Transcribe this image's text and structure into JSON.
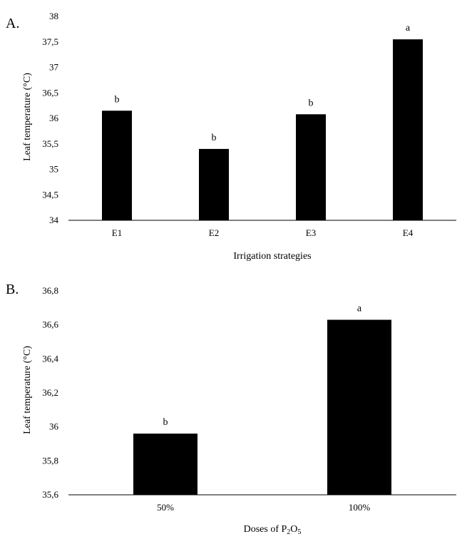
{
  "chart_data": [
    {
      "panel": "A.",
      "type": "bar",
      "categories": [
        "E1",
        "E2",
        "E3",
        "E4"
      ],
      "values": [
        36.15,
        35.4,
        36.08,
        37.55
      ],
      "bar_labels": [
        "b",
        "b",
        "b",
        "a"
      ],
      "title": "",
      "xlabel": "Irrigation strategies",
      "ylabel": "Leaf temperature (°C)",
      "ylim": [
        34,
        38
      ],
      "yticks": [
        "34",
        "34,5",
        "35",
        "35,5",
        "36",
        "36,5",
        "37",
        "37,5",
        "38"
      ],
      "grid": false,
      "bar_color": "#000000"
    },
    {
      "panel": "B.",
      "type": "bar",
      "categories": [
        "50%",
        "100%"
      ],
      "values": [
        35.96,
        36.63
      ],
      "bar_labels": [
        "b",
        "a"
      ],
      "title": "",
      "xlabel_parts": [
        "Doses of P",
        "2",
        "O",
        "5"
      ],
      "ylabel": "Leaf temperature (°C)",
      "ylim": [
        35.6,
        36.8
      ],
      "yticks": [
        "35,6",
        "35,8",
        "36",
        "36,2",
        "36,4",
        "36,6",
        "36,8"
      ],
      "grid": false,
      "bar_color": "#000000"
    }
  ]
}
